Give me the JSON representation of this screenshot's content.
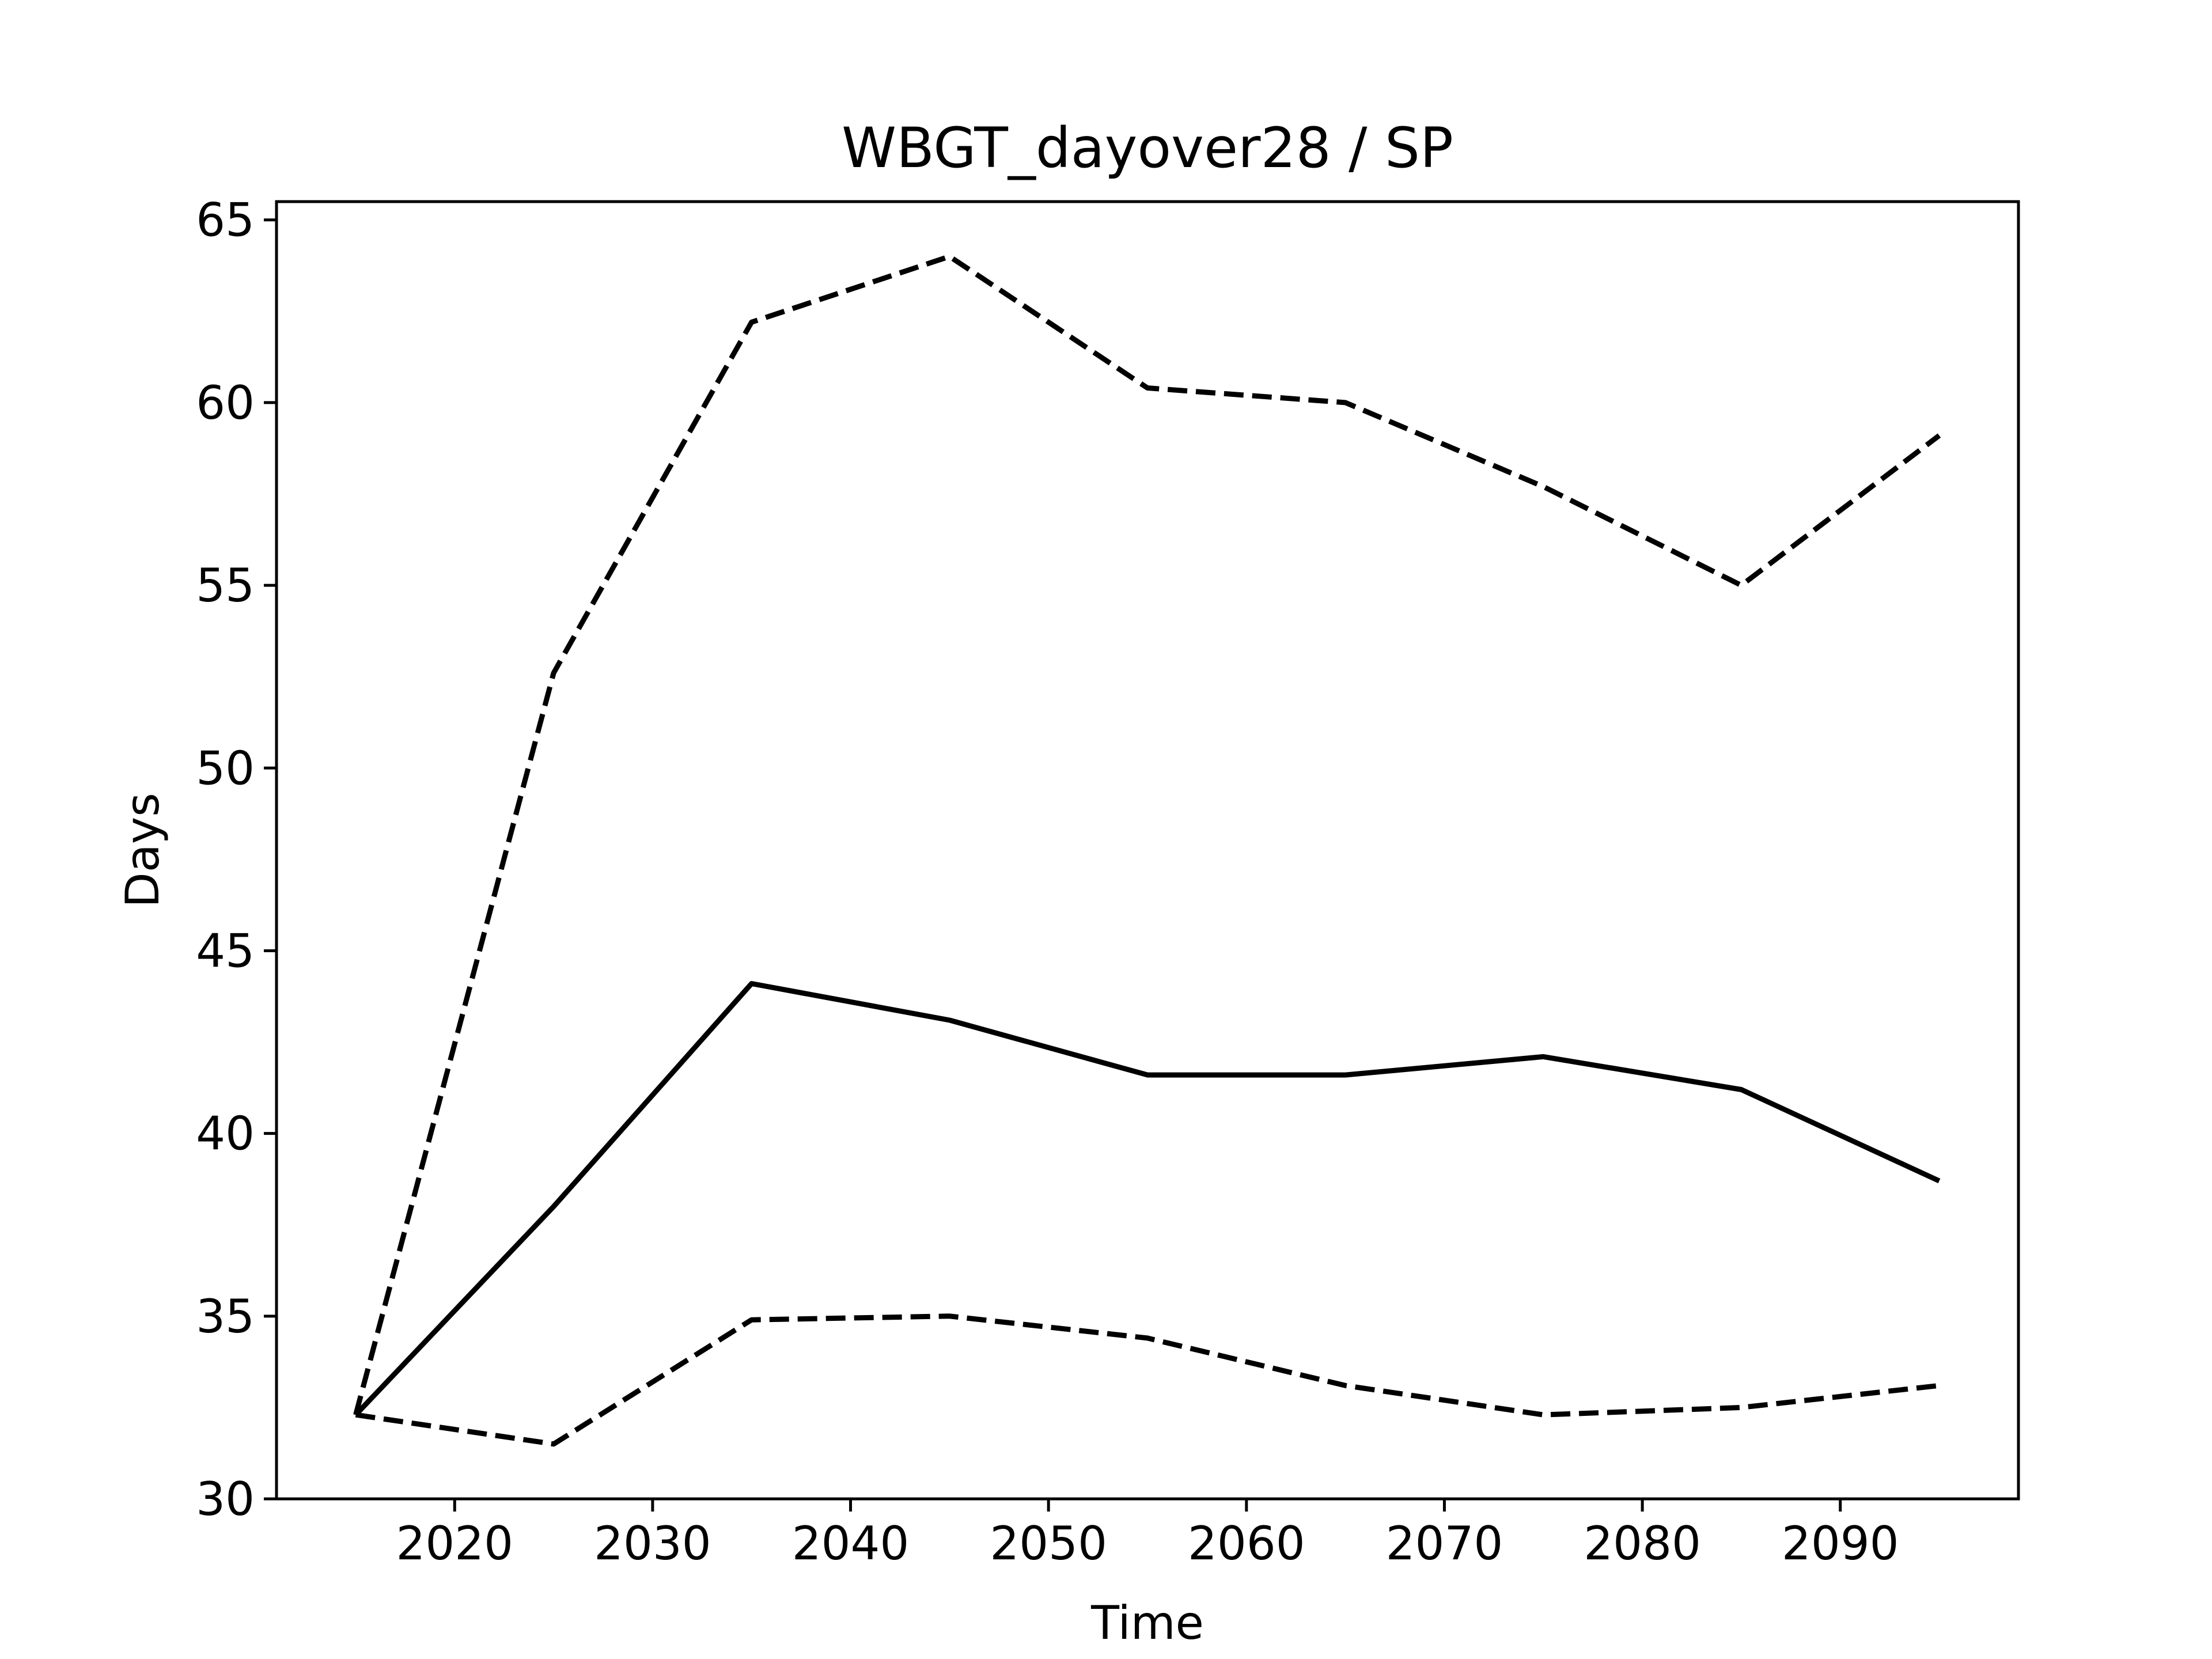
{
  "chart_data": {
    "type": "line",
    "title": "WBGT_dayover28 / SP",
    "xlabel": "Time",
    "ylabel": "Days",
    "xlim": [
      2011,
      2099
    ],
    "ylim": [
      30,
      65.5
    ],
    "xticks": [
      2020,
      2030,
      2040,
      2050,
      2060,
      2070,
      2080,
      2090
    ],
    "yticks": [
      30,
      35,
      40,
      45,
      50,
      55,
      60,
      65
    ],
    "grid": false,
    "legend": "none",
    "x": [
      2015,
      2025,
      2035,
      2045,
      2055,
      2065,
      2075,
      2085,
      2095
    ],
    "series": [
      {
        "style": "dashed",
        "color": "#000000",
        "values": [
          32.3,
          52.6,
          62.2,
          64.0,
          60.4,
          60.0,
          57.7,
          55.0,
          59.1
        ]
      },
      {
        "style": "solid",
        "color": "#000000",
        "values": [
          32.3,
          38.0,
          44.1,
          43.1,
          41.6,
          41.6,
          42.1,
          41.2,
          38.7
        ]
      },
      {
        "style": "dashed",
        "color": "#000000",
        "values": [
          32.3,
          31.5,
          34.9,
          35.0,
          34.4,
          33.1,
          32.3,
          32.5,
          33.1
        ]
      }
    ]
  }
}
